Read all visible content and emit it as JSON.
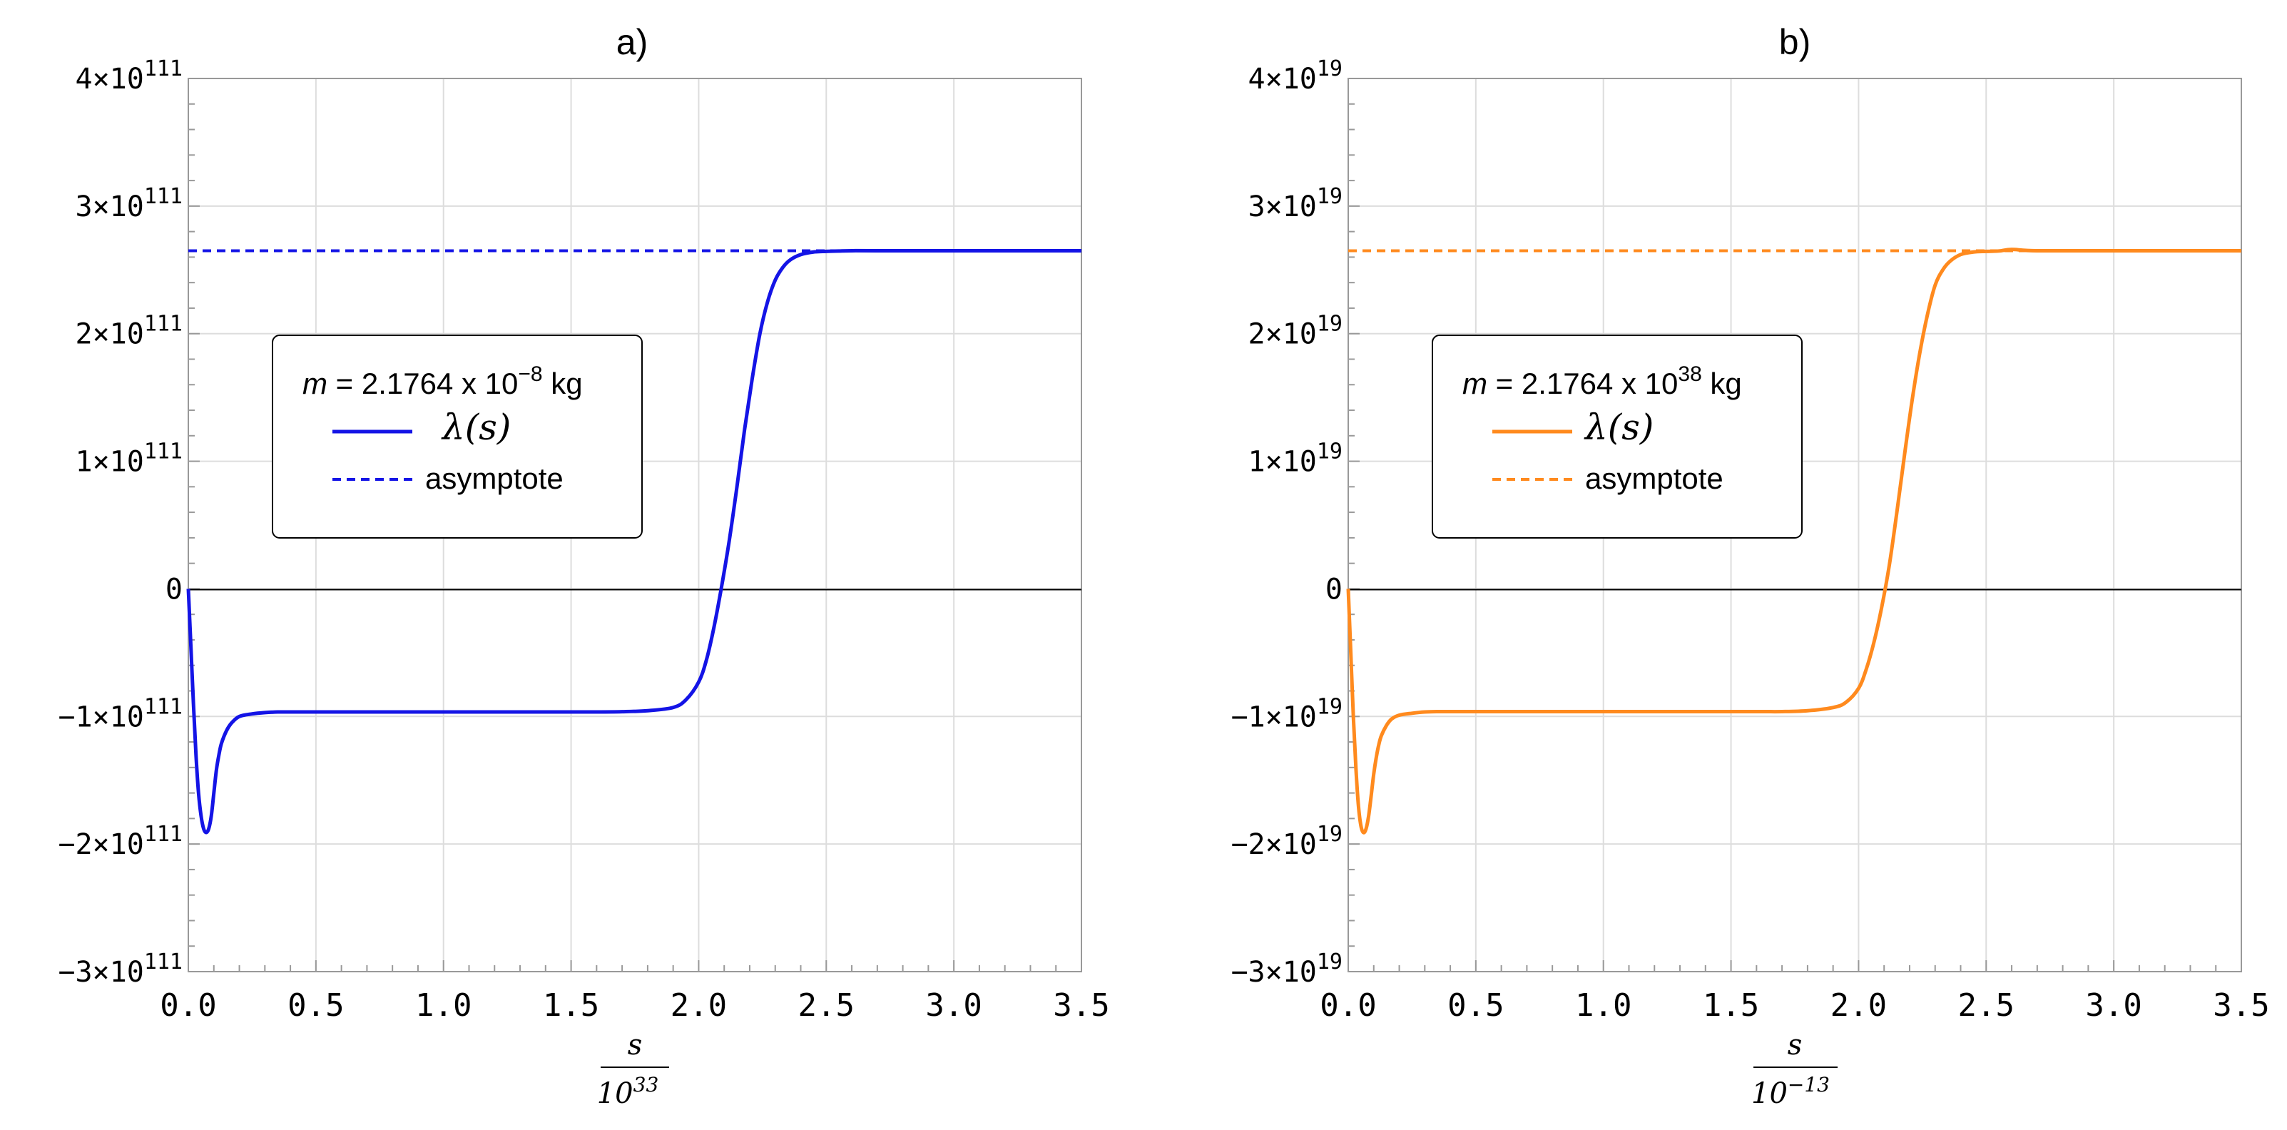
{
  "chart_data": [
    {
      "type": "line",
      "title": "a)",
      "xlabel": {
        "numerator": "s",
        "denominator_base": "10",
        "denominator_exp": "33"
      },
      "ylabel": "",
      "xlim": [
        0,
        3.5
      ],
      "ylim": [
        -3,
        4
      ],
      "y_multiplier_exponent": "111",
      "xticks": [
        "0.0",
        "0.5",
        "1.0",
        "1.5",
        "2.0",
        "2.5",
        "3.0",
        "3.5"
      ],
      "yticks": [
        {
          "value": 4,
          "mantissa": "4",
          "exponent": "111"
        },
        {
          "value": 3,
          "mantissa": "3",
          "exponent": "111"
        },
        {
          "value": 2,
          "mantissa": "2",
          "exponent": "111"
        },
        {
          "value": 1,
          "mantissa": "1",
          "exponent": "111"
        },
        {
          "value": 0,
          "mantissa": "0",
          "exponent": ""
        },
        {
          "value": -1,
          "mantissa": "−1",
          "exponent": "111"
        },
        {
          "value": -2,
          "mantissa": "−2",
          "exponent": "111"
        },
        {
          "value": -3,
          "mantissa": "−3",
          "exponent": "111"
        }
      ],
      "grid": true,
      "legend_placement": "center-left",
      "legend": {
        "mass_prefix": "m",
        "mass_text": " = 2.1764 x 10",
        "mass_exp": "−8",
        "mass_unit": " kg",
        "series_label": "λ(s)",
        "asymptote_label": "asymptote"
      },
      "color": "#1414e6",
      "asymptote": 2.65,
      "series": [
        {
          "name": "λ(s)",
          "x": [
            0,
            0.01,
            0.02,
            0.03,
            0.04,
            0.05,
            0.06,
            0.07,
            0.08,
            0.09,
            0.1,
            0.11,
            0.12,
            0.13,
            0.15,
            0.17,
            0.2,
            0.25,
            0.3,
            0.35,
            0.4,
            0.5,
            0.7,
            1.0,
            1.3,
            1.6,
            1.7,
            1.8,
            1.9,
            1.95,
            2.0,
            2.03,
            2.06,
            2.09,
            2.12,
            2.15,
            2.18,
            2.21,
            2.24,
            2.27,
            2.3,
            2.33,
            2.36,
            2.4,
            2.45,
            2.5,
            2.55,
            2.6,
            2.7,
            3.0,
            3.5
          ],
          "values": [
            0,
            -0.45,
            -0.9,
            -1.3,
            -1.6,
            -1.78,
            -1.88,
            -1.91,
            -1.88,
            -1.78,
            -1.6,
            -1.42,
            -1.3,
            -1.21,
            -1.11,
            -1.05,
            -1.0,
            -0.98,
            -0.97,
            -0.965,
            -0.965,
            -0.965,
            -0.965,
            -0.965,
            -0.965,
            -0.965,
            -0.963,
            -0.955,
            -0.93,
            -0.87,
            -0.73,
            -0.56,
            -0.3,
            0.02,
            0.38,
            0.8,
            1.25,
            1.65,
            2.0,
            2.25,
            2.42,
            2.52,
            2.58,
            2.62,
            2.64,
            2.645,
            2.648,
            2.65,
            2.65,
            2.65,
            2.65
          ]
        }
      ]
    },
    {
      "type": "line",
      "title": "b)",
      "xlabel": {
        "numerator": "s",
        "denominator_base": "10",
        "denominator_exp": "−13"
      },
      "ylabel": "",
      "xlim": [
        0,
        3.5
      ],
      "ylim": [
        -3,
        4
      ],
      "y_multiplier_exponent": "19",
      "xticks": [
        "0.0",
        "0.5",
        "1.0",
        "1.5",
        "2.0",
        "2.5",
        "3.0",
        "3.5"
      ],
      "yticks": [
        {
          "value": 4,
          "mantissa": "4",
          "exponent": "19"
        },
        {
          "value": 3,
          "mantissa": "3",
          "exponent": "19"
        },
        {
          "value": 2,
          "mantissa": "2",
          "exponent": "19"
        },
        {
          "value": 1,
          "mantissa": "1",
          "exponent": "19"
        },
        {
          "value": 0,
          "mantissa": "0",
          "exponent": ""
        },
        {
          "value": -1,
          "mantissa": "−1",
          "exponent": "19"
        },
        {
          "value": -2,
          "mantissa": "−2",
          "exponent": "19"
        },
        {
          "value": -3,
          "mantissa": "−3",
          "exponent": "19"
        }
      ],
      "grid": true,
      "legend_placement": "center-left",
      "legend": {
        "mass_prefix": "m",
        "mass_text": " = 2.1764 x 10",
        "mass_exp": "38",
        "mass_unit": " kg",
        "series_label": "λ(s)",
        "asymptote_label": "asymptote"
      },
      "color": "#ff8a1e",
      "asymptote": 2.65,
      "series": [
        {
          "name": "λ(s)",
          "x": [
            0,
            0.01,
            0.02,
            0.03,
            0.04,
            0.05,
            0.06,
            0.07,
            0.08,
            0.09,
            0.1,
            0.11,
            0.12,
            0.13,
            0.15,
            0.17,
            0.2,
            0.25,
            0.3,
            0.35,
            0.4,
            0.5,
            0.7,
            1.0,
            1.3,
            1.6,
            1.7,
            1.8,
            1.9,
            1.95,
            2.0,
            2.03,
            2.06,
            2.09,
            2.12,
            2.15,
            2.18,
            2.21,
            2.24,
            2.27,
            2.3,
            2.33,
            2.36,
            2.4,
            2.45,
            2.5,
            2.55,
            2.6,
            2.7,
            3.0,
            3.5
          ],
          "values": [
            0,
            -0.5,
            -1.0,
            -1.4,
            -1.7,
            -1.86,
            -1.91,
            -1.88,
            -1.78,
            -1.62,
            -1.45,
            -1.32,
            -1.22,
            -1.15,
            -1.07,
            -1.02,
            -0.99,
            -0.975,
            -0.965,
            -0.962,
            -0.962,
            -0.962,
            -0.962,
            -0.962,
            -0.962,
            -0.962,
            -0.962,
            -0.955,
            -0.93,
            -0.89,
            -0.78,
            -0.63,
            -0.42,
            -0.15,
            0.18,
            0.6,
            1.05,
            1.48,
            1.85,
            2.15,
            2.38,
            2.5,
            2.57,
            2.62,
            2.64,
            2.645,
            2.648,
            2.66,
            2.65,
            2.65,
            2.65
          ]
        }
      ]
    }
  ]
}
